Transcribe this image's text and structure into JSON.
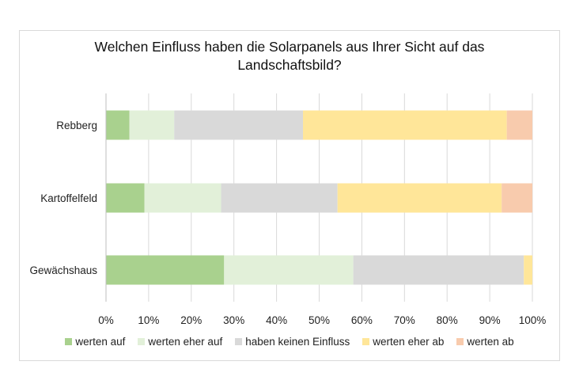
{
  "chart_data": {
    "type": "bar",
    "orientation": "horizontal",
    "stacked": true,
    "title": [
      "Welchen Einfluss haben die Solarpanels aus Ihrer Sicht auf das",
      "Landschaftsbild?"
    ],
    "categories": [
      "Rebberg",
      "Kartoffelfeld",
      "Gewächshaus"
    ],
    "series": [
      {
        "name": "werten auf",
        "color": "#a9d18e",
        "values": [
          5.5,
          9,
          27.7
        ]
      },
      {
        "name": "werten eher auf",
        "color": "#e2f0d9",
        "values": [
          10.5,
          18,
          30.3
        ]
      },
      {
        "name": "haben keinen Einfluss",
        "color": "#d9d9d9",
        "values": [
          30.2,
          27.3,
          40
        ]
      },
      {
        "name": "werten eher ab",
        "color": "#ffe699",
        "values": [
          47.8,
          38.5,
          2
        ]
      },
      {
        "name": "werten ab",
        "color": "#f8cbad",
        "values": [
          6,
          7.2,
          0
        ]
      }
    ],
    "xlim": [
      0,
      100
    ],
    "xticks": [
      "0%",
      "10%",
      "20%",
      "30%",
      "40%",
      "50%",
      "60%",
      "70%",
      "80%",
      "90%",
      "100%"
    ],
    "xlabel": "",
    "ylabel": "",
    "grid": "vertical",
    "legend": "bottom"
  }
}
